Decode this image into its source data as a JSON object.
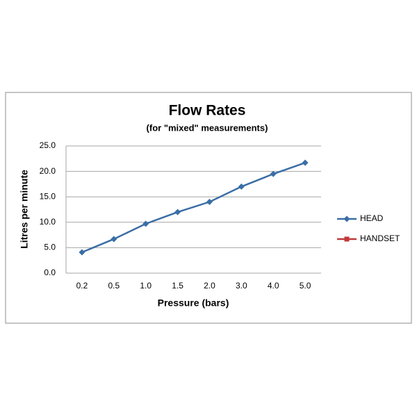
{
  "chart_data": {
    "type": "line",
    "title": "Flow Rates",
    "subtitle": "(for \"mixed\" measurements)",
    "x_label": "Pressure (bars)",
    "y_label": "Litres per minute",
    "categories": [
      "0.2",
      "0.5",
      "1.0",
      "1.5",
      "2.0",
      "3.0",
      "4.0",
      "5.0"
    ],
    "series": [
      {
        "name": "HEAD",
        "color": "#3a6ea5",
        "marker": "diamond",
        "values": [
          4.1,
          6.7,
          9.7,
          12.0,
          14.0,
          17.0,
          19.5,
          21.7
        ]
      },
      {
        "name": "HANDSET",
        "color": "#c0393b",
        "marker": "square",
        "values": [
          null,
          null,
          null,
          null,
          null,
          null,
          null,
          null
        ]
      }
    ],
    "ylim": [
      0,
      25
    ],
    "yticks": [
      {
        "value": 0,
        "label": "0.0"
      },
      {
        "value": 5,
        "label": "5.0"
      },
      {
        "value": 10,
        "label": "10.0"
      },
      {
        "value": 15,
        "label": "15.0"
      },
      {
        "value": 20,
        "label": "20.0"
      },
      {
        "value": 25,
        "label": "25.0"
      }
    ],
    "grid": true,
    "legend": "right"
  }
}
